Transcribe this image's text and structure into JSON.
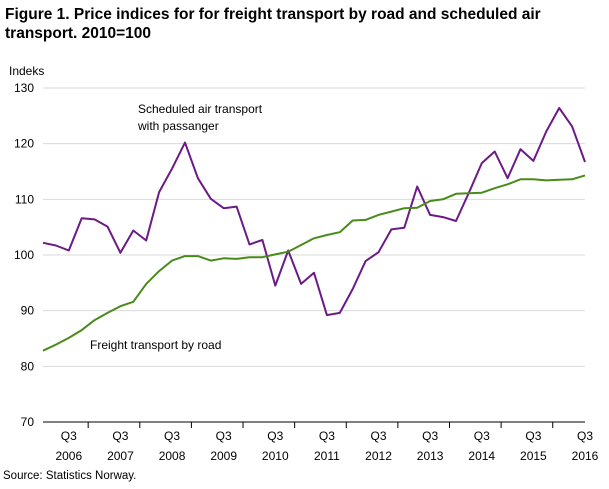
{
  "title": "Figure 1. Price indices for for freight transport by road and scheduled air transport. 2010=100",
  "source": "Source: Statistics Norway.",
  "chart_data": {
    "type": "line",
    "title": "Figure 1. Price indices for for freight transport by road and scheduled air transport. 2010=100",
    "ylabel": "Indeks",
    "xlabel": "",
    "ylim": [
      70,
      130
    ],
    "yticks": [
      70,
      80,
      90,
      100,
      110,
      120,
      130
    ],
    "grid": "horizontal",
    "x_tick_labels": [
      {
        "quarter": "Q3",
        "year": "2006",
        "index": 2
      },
      {
        "quarter": "Q3",
        "year": "2007",
        "index": 6
      },
      {
        "quarter": "Q3",
        "year": "2008",
        "index": 10
      },
      {
        "quarter": "Q3",
        "year": "2009",
        "index": 14
      },
      {
        "quarter": "Q3",
        "year": "2010",
        "index": 18
      },
      {
        "quarter": "Q3",
        "year": "2011",
        "index": 22
      },
      {
        "quarter": "Q3",
        "year": "2012",
        "index": 26
      },
      {
        "quarter": "Q3",
        "year": "2013",
        "index": 30
      },
      {
        "quarter": "Q3",
        "year": "2014",
        "index": 34
      },
      {
        "quarter": "Q3",
        "year": "2015",
        "index": 38
      },
      {
        "quarter": "Q3",
        "year": "2016",
        "index": 42
      }
    ],
    "x": [
      "2006Q1",
      "2006Q2",
      "2006Q3",
      "2006Q4",
      "2007Q1",
      "2007Q2",
      "2007Q3",
      "2007Q4",
      "2008Q1",
      "2008Q2",
      "2008Q3",
      "2008Q4",
      "2009Q1",
      "2009Q2",
      "2009Q3",
      "2009Q4",
      "2010Q1",
      "2010Q2",
      "2010Q3",
      "2010Q4",
      "2011Q1",
      "2011Q2",
      "2011Q3",
      "2011Q4",
      "2012Q1",
      "2012Q2",
      "2012Q3",
      "2012Q4",
      "2013Q1",
      "2013Q2",
      "2013Q3",
      "2013Q4",
      "2014Q1",
      "2014Q2",
      "2014Q3",
      "2014Q4",
      "2015Q1",
      "2015Q2",
      "2015Q3",
      "2015Q4",
      "2016Q1",
      "2016Q2",
      "2016Q3"
    ],
    "series": [
      {
        "name": "Scheduled air transport with passanger",
        "color": "#6b1a87",
        "label_lines": [
          "Scheduled air transport",
          "with passanger"
        ],
        "values": [
          102.2,
          101.7,
          100.8,
          106.6,
          106.4,
          105.1,
          100.4,
          104.4,
          102.6,
          111.3,
          115.5,
          120.2,
          113.8,
          110.1,
          108.4,
          108.7,
          101.9,
          102.7,
          94.5,
          100.8,
          94.8,
          96.8,
          89.2,
          89.6,
          93.9,
          98.9,
          100.5,
          104.6,
          104.9,
          112.3,
          107.2,
          106.8,
          106.1,
          111.2,
          116.5,
          118.6,
          113.8,
          119.0,
          116.9,
          122.2,
          126.4,
          123.1,
          116.7
        ]
      },
      {
        "name": "Freight transport by road",
        "color": "#4a8a1a",
        "label_lines": [
          "Freight transport  by road"
        ],
        "values": [
          82.8,
          83.9,
          85.1,
          86.5,
          88.3,
          89.6,
          90.8,
          91.6,
          94.8,
          97.1,
          99.0,
          99.8,
          99.8,
          99.0,
          99.4,
          99.3,
          99.6,
          99.6,
          100.1,
          100.6,
          101.8,
          103.0,
          103.6,
          104.1,
          106.2,
          106.3,
          107.2,
          107.8,
          108.4,
          108.5,
          109.7,
          110.0,
          111.0,
          111.1,
          111.2,
          112.0,
          112.7,
          113.6,
          113.6,
          113.4,
          113.5,
          113.6,
          114.3
        ]
      }
    ]
  }
}
